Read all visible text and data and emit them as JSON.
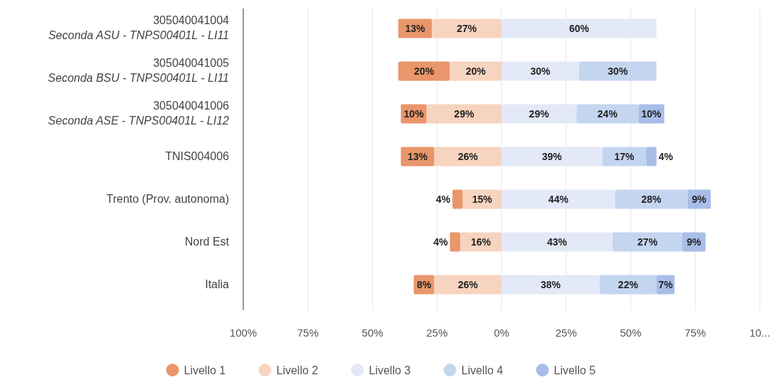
{
  "chart_data": {
    "type": "bar",
    "orientation": "horizontal",
    "categories": [
      "305040041004\nSeconda ASU - TNPS00401L -  LI11",
      "305040041005\nSeconda BSU - TNPS00401L -  LI11",
      "305040041006\nSeconda ASE - TNPS00401L -  LI12",
      "TNIS004006",
      "Trento (Prov. autonoma)",
      "Nord Est",
      "Italia"
    ],
    "series": [
      {
        "name": "Livello 1",
        "color": "#e9966b",
        "base": [
          -40,
          -40,
          -39,
          -39,
          -19,
          -20,
          -34
        ],
        "values": [
          13,
          20,
          10,
          13,
          4,
          4,
          8
        ],
        "value_labels": [
          "13%",
          "20%",
          "10%",
          "13%",
          "4%",
          "4%",
          "8%"
        ]
      },
      {
        "name": "Livello 2",
        "color": "#f7d4bf",
        "base": [
          -27,
          -20,
          -29,
          -26,
          -15,
          -16,
          -26
        ],
        "values": [
          27,
          20,
          29,
          26,
          15,
          16,
          26
        ],
        "value_labels": [
          "27%",
          "20%",
          "29%",
          "26%",
          "15%",
          "16%",
          "26%"
        ]
      },
      {
        "name": "Livello 3",
        "color": "#e3e9f7",
        "base": [
          0,
          0,
          0,
          0,
          0,
          0,
          0
        ],
        "values": [
          60,
          30,
          29,
          39,
          44,
          43,
          38
        ],
        "value_labels": [
          "60%",
          "30%",
          "29%",
          "39%",
          "44%",
          "43%",
          "38%"
        ]
      },
      {
        "name": "Livello 4",
        "color": "#c4d5ef",
        "base": [
          null,
          30,
          29,
          39,
          44,
          43,
          38
        ],
        "values": [
          null,
          30,
          24,
          17,
          28,
          27,
          22
        ],
        "value_labels": [
          null,
          "30%",
          "24%",
          "17%",
          "28%",
          "27%",
          "22%"
        ]
      },
      {
        "name": "Livello 5",
        "color": "#a8bde8",
        "base": [
          null,
          null,
          53,
          56,
          72,
          70,
          60
        ],
        "values": [
          null,
          null,
          10,
          4,
          9,
          9,
          7
        ],
        "value_labels": [
          null,
          null,
          "10%",
          "4%",
          "9%",
          "9%",
          "7%"
        ]
      }
    ],
    "xlim": [
      -100,
      100
    ],
    "xticks": [
      {
        "value": -100,
        "label": "100%"
      },
      {
        "value": -75,
        "label": "75%"
      },
      {
        "value": -50,
        "label": "50%"
      },
      {
        "value": -25,
        "label": "25%"
      },
      {
        "value": 0,
        "label": "0%"
      },
      {
        "value": 25,
        "label": "25%"
      },
      {
        "value": 50,
        "label": "50%"
      },
      {
        "value": 75,
        "label": "75%"
      },
      {
        "value": 100,
        "label": "10..."
      }
    ],
    "grid": "x",
    "legend": "bottom"
  }
}
